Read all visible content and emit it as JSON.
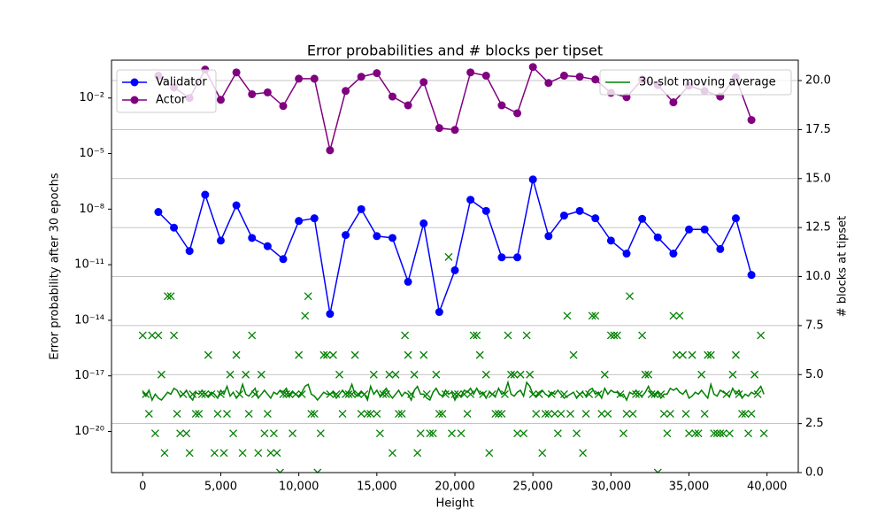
{
  "chart_data": {
    "type": "line",
    "title": "Error probabilities and # blocks per tipset",
    "xlabel": "Height",
    "ylabel": "Error probability after 30 epochs",
    "y2label": "# blocks at tipset",
    "ylabel_color": "#0000ff",
    "y2label_color": "#008000",
    "xlim": [
      -2000,
      42000
    ],
    "xticks": [
      0,
      {
        "value": 5000,
        "label": "5,000"
      },
      {
        "value": 10000,
        "label": "10,000"
      },
      {
        "value": 15000,
        "label": "15,000"
      },
      {
        "value": 20000,
        "label": "20,000"
      },
      {
        "value": 25000,
        "label": "25,000"
      },
      {
        "value": 30000,
        "label": "30,000"
      },
      {
        "value": 35000,
        "label": "35,000"
      },
      {
        "value": 40000,
        "label": "40,000"
      }
    ],
    "log_y": true,
    "ylim": [
      6e-23,
      1.1
    ],
    "yticks": [
      {
        "value": 1e-20,
        "label": "10⁻²⁰"
      },
      {
        "value": 1e-17,
        "label": "10⁻¹⁷"
      },
      {
        "value": 1e-14,
        "label": "10⁻¹⁴"
      },
      {
        "value": 1e-11,
        "label": "10⁻¹¹"
      },
      {
        "value": 1e-08,
        "label": "10⁻⁸"
      },
      {
        "value": 1e-05,
        "label": "10⁻⁵"
      },
      {
        "value": 0.01,
        "label": "10⁻²"
      }
    ],
    "y2lim": [
      0,
      21.04
    ],
    "y2ticks": [
      {
        "value": 0,
        "label": "0.0"
      },
      2.5,
      {
        "value": 5,
        "label": "5.0"
      },
      7.5,
      {
        "value": 10,
        "label": "10.0"
      },
      12.5,
      {
        "value": 15,
        "label": "15.0"
      },
      17.5,
      {
        "value": 20,
        "label": "20.0"
      }
    ],
    "grid": "y2",
    "legend": "upper left",
    "legend2": "upper right",
    "series": [
      {
        "name": "Validator",
        "color": "#0000ff",
        "marker": "o",
        "linestyle": "solid",
        "x": [
          1000,
          2000,
          3000,
          4000,
          5000,
          6000,
          7000,
          8000,
          9000,
          10000,
          11000,
          12000,
          13000,
          14000,
          15000,
          16000,
          17000,
          18000,
          19000,
          20000,
          21000,
          22000,
          23000,
          24000,
          25000,
          26000,
          27000,
          28000,
          29000,
          30000,
          31000,
          32000,
          33000,
          34000,
          35000,
          36000,
          37000,
          38000,
          39000
        ],
        "values": [
          7e-09,
          1e-09,
          5.5e-11,
          6e-08,
          2e-10,
          1.6e-08,
          2.8e-10,
          1e-10,
          2e-11,
          2.3e-09,
          3.2e-09,
          2.2e-14,
          4e-10,
          1e-08,
          3.5e-10,
          2.8e-10,
          1.2e-12,
          1.7e-09,
          2.8e-14,
          5e-12,
          3.2e-08,
          8e-09,
          2.5e-11,
          2.5e-11,
          4e-07,
          3.5e-10,
          4.5e-09,
          8e-09,
          3.2e-09,
          2e-10,
          4e-11,
          3e-09,
          3e-10,
          4e-11,
          8e-10,
          8e-10,
          7e-11,
          3.2e-09,
          2.8e-12
        ]
      },
      {
        "name": "Actor",
        "color": "#800080",
        "marker": "o",
        "linestyle": "solid",
        "x": [
          1000,
          2000,
          3000,
          4000,
          5000,
          6000,
          7000,
          8000,
          9000,
          10000,
          11000,
          12000,
          13000,
          14000,
          15000,
          16000,
          17000,
          18000,
          19000,
          20000,
          21000,
          22000,
          23000,
          24000,
          25000,
          26000,
          27000,
          28000,
          29000,
          30000,
          31000,
          32000,
          33000,
          34000,
          35000,
          36000,
          37000,
          38000,
          39000
        ],
        "values": [
          0.16,
          0.037,
          0.01,
          0.34,
          0.008,
          0.24,
          0.016,
          0.02,
          0.0037,
          0.11,
          0.11,
          1.5e-05,
          0.024,
          0.14,
          0.22,
          0.012,
          0.004,
          0.072,
          0.00024,
          0.00019,
          0.24,
          0.16,
          0.004,
          0.0015,
          0.47,
          0.065,
          0.16,
          0.14,
          0.1,
          0.019,
          0.011,
          0.1,
          0.05,
          0.0058,
          0.046,
          0.024,
          0.012,
          0.13,
          0.00065
        ]
      },
      {
        "color": "#008000",
        "marker": "x",
        "linestyle": "none",
        "axis": "y2",
        "x": [
          0,
          200,
          400,
          600,
          800,
          1000,
          1200,
          1400,
          1600,
          1800,
          2000,
          2200,
          2400,
          2600,
          2800,
          3000,
          3200,
          3400,
          3600,
          3800,
          4000,
          4200,
          4400,
          4600,
          4800,
          5000,
          5200,
          5400,
          5600,
          5800,
          6000,
          6200,
          6400,
          6600,
          6800,
          7000,
          7200,
          7400,
          7600,
          7800,
          8000,
          8200,
          8400,
          8600,
          8800,
          9000,
          9200,
          9400,
          9600,
          9800,
          10000,
          10200,
          10400,
          10600,
          10800,
          11000,
          11200,
          11400,
          11600,
          11800,
          12000,
          12200,
          12400,
          12600,
          12800,
          13000,
          13200,
          13400,
          13600,
          13800,
          14000,
          14200,
          14400,
          14600,
          14800,
          15000,
          15200,
          15400,
          15600,
          15800,
          16000,
          16200,
          16400,
          16600,
          16800,
          17000,
          17200,
          17400,
          17600,
          17800,
          18000,
          18200,
          18400,
          18600,
          18800,
          19000,
          19200,
          19400,
          19600,
          19800,
          20000,
          20200,
          20400,
          20600,
          20800,
          21000,
          21200,
          21400,
          21600,
          21800,
          22000,
          22200,
          22400,
          22600,
          22800,
          23000,
          23200,
          23400,
          23600,
          23800,
          24000,
          24200,
          24400,
          24600,
          24800,
          25000,
          25200,
          25400,
          25600,
          25800,
          26000,
          26200,
          26400,
          26600,
          26800,
          27000,
          27200,
          27400,
          27600,
          27800,
          28000,
          28200,
          28400,
          28600,
          28800,
          29000,
          29200,
          29400,
          29600,
          29800,
          30000,
          30200,
          30400,
          30600,
          30800,
          31000,
          31200,
          31400,
          31600,
          31800,
          32000,
          32200,
          32400,
          32600,
          32800,
          33000,
          33200,
          33400,
          33600,
          33800,
          34000,
          34200,
          34400,
          34600,
          34800,
          35000,
          35200,
          35400,
          35600,
          35800,
          36000,
          36200,
          36400,
          36600,
          36800,
          37000,
          37200,
          37400,
          37600,
          37800,
          38000,
          38200,
          38400,
          38600,
          38800,
          39000,
          39200,
          39400,
          39600,
          39800
        ],
        "values": [
          7,
          4,
          3,
          7,
          2,
          7,
          5,
          1,
          9,
          9,
          7,
          3,
          2,
          4,
          2,
          1,
          4,
          3,
          3,
          4,
          4,
          6,
          4,
          1,
          3,
          4,
          1,
          3,
          5,
          2,
          6,
          4,
          1,
          5,
          3,
          7,
          4,
          1,
          5,
          2,
          3,
          1,
          2,
          1,
          0,
          4,
          4,
          4,
          2,
          4,
          6,
          4,
          8,
          9,
          3,
          3,
          0,
          2,
          6,
          6,
          4,
          6,
          4,
          5,
          3,
          4,
          4,
          4,
          6,
          4,
          3,
          4,
          3,
          3,
          5,
          3,
          2,
          4,
          4,
          5,
          1,
          5,
          3,
          3,
          7,
          6,
          4,
          5,
          1,
          2,
          6,
          4,
          2,
          2,
          5,
          3,
          3,
          4,
          11,
          2,
          4,
          4,
          2,
          4,
          3,
          4,
          7,
          7,
          6,
          4,
          5,
          1,
          4,
          3,
          3,
          3,
          4,
          7,
          5,
          5,
          2,
          5,
          2,
          7,
          5,
          4,
          3,
          4,
          1,
          3,
          3,
          4,
          3,
          2,
          3,
          4,
          8,
          3,
          6,
          2,
          4,
          1,
          3,
          4,
          8,
          8,
          4,
          3,
          5,
          3,
          7,
          7,
          7,
          4,
          2,
          3,
          9,
          3,
          4,
          4,
          7,
          5,
          5,
          4,
          4,
          0,
          4,
          3,
          2,
          3,
          8,
          6,
          8,
          6,
          3,
          2,
          6,
          2,
          2,
          5,
          3,
          6,
          6,
          2,
          2,
          2,
          2,
          4,
          2,
          5,
          6,
          4,
          3,
          3,
          2,
          3,
          5,
          4,
          7,
          2
        ]
      },
      {
        "name": "30-slot moving average",
        "color": "#008000",
        "marker": "none",
        "linestyle": "solid",
        "axis": "y2",
        "x": [
          0,
          200,
          400,
          600,
          800,
          1000,
          1200,
          1400,
          1600,
          1800,
          2000,
          2200,
          2400,
          2600,
          2800,
          3000,
          3200,
          3400,
          3600,
          3800,
          4000,
          4200,
          4400,
          4600,
          4800,
          5000,
          5200,
          5400,
          5600,
          5800,
          6000,
          6200,
          6400,
          6600,
          6800,
          7000,
          7200,
          7400,
          7600,
          7800,
          8000,
          8200,
          8400,
          8600,
          8800,
          9000,
          9200,
          9400,
          9600,
          9800,
          10000,
          10200,
          10400,
          10600,
          10800,
          11000,
          11200,
          11400,
          11600,
          11800,
          12000,
          12200,
          12400,
          12600,
          12800,
          13000,
          13200,
          13400,
          13600,
          13800,
          14000,
          14200,
          14400,
          14600,
          14800,
          15000,
          15200,
          15400,
          15600,
          15800,
          16000,
          16200,
          16400,
          16600,
          16800,
          17000,
          17200,
          17400,
          17600,
          17800,
          18000,
          18200,
          18400,
          18600,
          18800,
          19000,
          19200,
          19400,
          19600,
          19800,
          20000,
          20200,
          20400,
          20600,
          20800,
          21000,
          21200,
          21400,
          21600,
          21800,
          22000,
          22200,
          22400,
          22600,
          22800,
          23000,
          23200,
          23400,
          23600,
          23800,
          24000,
          24200,
          24400,
          24600,
          24800,
          25000,
          25200,
          25400,
          25600,
          25800,
          26000,
          26200,
          26400,
          26600,
          26800,
          27000,
          27200,
          27400,
          27600,
          27800,
          28000,
          28200,
          28400,
          28600,
          28800,
          29000,
          29200,
          29400,
          29600,
          29800,
          30000,
          30200,
          30400,
          30600,
          30800,
          31000,
          31200,
          31400,
          31600,
          31800,
          32000,
          32200,
          32400,
          32600,
          32800,
          33000,
          33200,
          33400,
          33600,
          33800,
          34000,
          34200,
          34400,
          34600,
          34800,
          35000,
          35200,
          35400,
          35600,
          35800,
          36000,
          36200,
          36400,
          36600,
          36800,
          37000,
          37200,
          37400,
          37600,
          37800,
          38000,
          38200,
          38400,
          38600,
          38800,
          39000,
          39200,
          39400,
          39600,
          39800
        ],
        "values": [
          4.1,
          3.9,
          4.2,
          3.7,
          4.0,
          3.8,
          3.7,
          3.9,
          4.1,
          4.0,
          4.3,
          4.2,
          3.9,
          4.0,
          4.2,
          3.9,
          3.7,
          4.1,
          4.0,
          4.2,
          4.0,
          3.9,
          4.1,
          4.0,
          3.8,
          4.2,
          4.0,
          4.4,
          3.9,
          4.1,
          3.8,
          4.0,
          4.5,
          4.0,
          3.9,
          4.1,
          4.3,
          3.8,
          4.0,
          4.2,
          4.0,
          3.8,
          4.1,
          4.0,
          4.2,
          4.1,
          4.3,
          3.9,
          4.1,
          4.0,
          3.9,
          4.1,
          4.4,
          4.5,
          4.0,
          3.9,
          3.7,
          3.9,
          4.1,
          4.0,
          4.0,
          4.1,
          3.8,
          4.0,
          4.2,
          4.0,
          4.1,
          4.5,
          4.0,
          3.9,
          4.1,
          4.0,
          3.7,
          4.4,
          4.0,
          4.2,
          3.9,
          4.1,
          4.3,
          4.0,
          3.8,
          4.0,
          4.2,
          3.9,
          4.1,
          4.0,
          3.7,
          4.2,
          4.4,
          4.0,
          4.0,
          3.8,
          3.7,
          4.1,
          4.3,
          4.0,
          3.9,
          4.2,
          4.0,
          4.1,
          3.7,
          4.0,
          3.9,
          4.2,
          4.1,
          4.3,
          4.0,
          4.3,
          4.0,
          4.1,
          3.8,
          4.1,
          4.0,
          3.9,
          4.3,
          4.0,
          4.1,
          4.6,
          4.0,
          3.9,
          4.1,
          4.2,
          3.9,
          4.6,
          4.4,
          4.0,
          3.9,
          4.1,
          4.2,
          4.0,
          3.9,
          4.1,
          4.0,
          4.2,
          4.0,
          3.8,
          3.9,
          4.0,
          4.1,
          3.8,
          4.0,
          4.1,
          3.9,
          4.2,
          4.3,
          4.0,
          4.1,
          3.8,
          4.3,
          4.0,
          4.2,
          4.1,
          4.1,
          3.9,
          4.0,
          3.7,
          4.1,
          4.0,
          4.2,
          4.0,
          3.9,
          4.1,
          4.4,
          4.0,
          3.9,
          4.1,
          3.8,
          4.0,
          4.0,
          4.3,
          4.2,
          4.3,
          4.1,
          4.0,
          4.2,
          3.8,
          3.9,
          4.1,
          4.0,
          4.2,
          4.0,
          3.8,
          4.5,
          4.0,
          3.9,
          4.2,
          4.1,
          4.0,
          3.9,
          4.3,
          4.0,
          4.2,
          3.8,
          4.0,
          3.9,
          4.1,
          4.0,
          4.2,
          4.4,
          4.0
        ]
      }
    ]
  }
}
